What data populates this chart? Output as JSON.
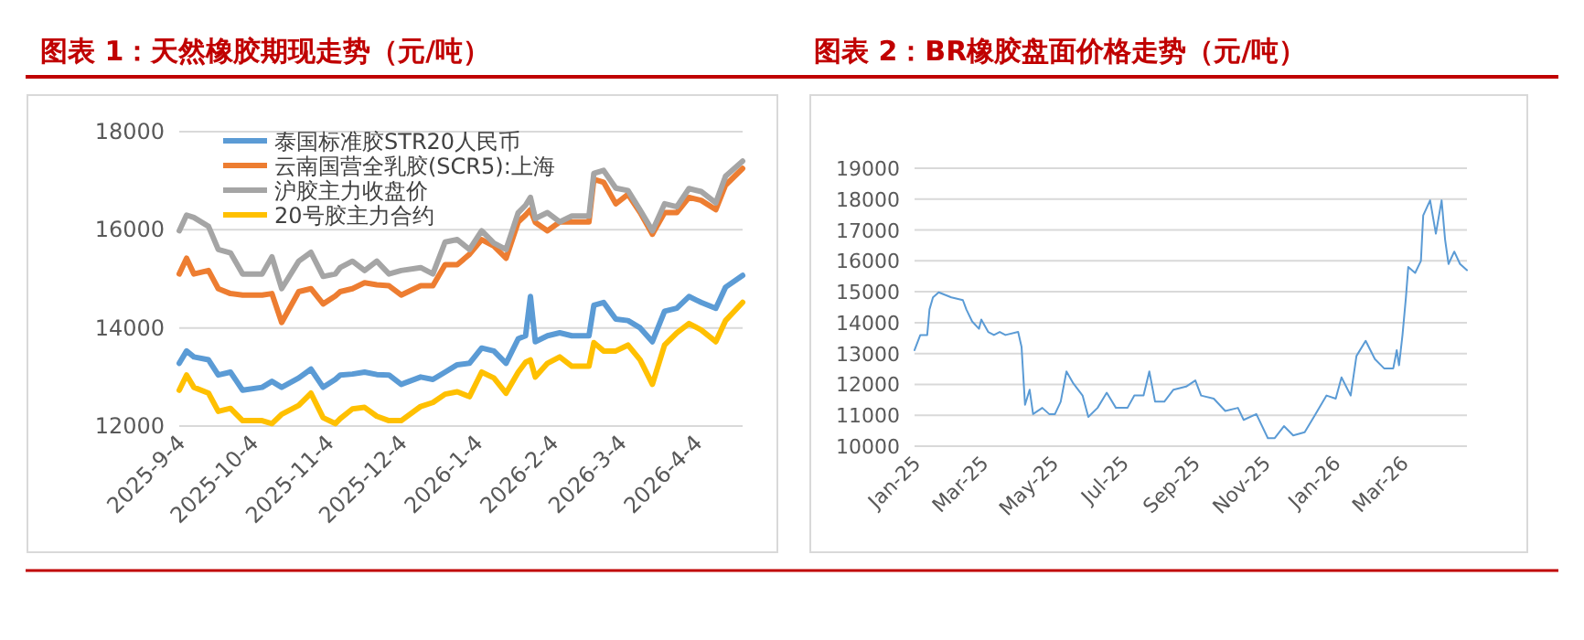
{
  "chart_data": [
    {
      "type": "line",
      "title": "图表 1：天然橡胶期现走势（元/吨）",
      "x": [
        "2025-09-04",
        "2025-09-07",
        "2025-09-10",
        "2025-09-16",
        "2025-09-20",
        "2025-09-25",
        "2025-09-30",
        "2025-10-08",
        "2025-10-12",
        "2025-10-16",
        "2025-10-23",
        "2025-10-28",
        "2025-11-02",
        "2025-11-07",
        "2025-11-09",
        "2025-11-14",
        "2025-11-19",
        "2025-11-24",
        "2025-11-29",
        "2025-12-04",
        "2025-12-12",
        "2025-12-17",
        "2025-12-22",
        "2025-12-27",
        "2026-01-01",
        "2026-01-06",
        "2026-01-11",
        "2026-01-16",
        "2026-01-21",
        "2026-01-24",
        "2026-01-26",
        "2026-01-28",
        "2026-02-02",
        "2026-02-07",
        "2026-02-12",
        "2026-02-19",
        "2026-02-21",
        "2026-02-25",
        "2026-03-02",
        "2026-03-07",
        "2026-03-12",
        "2026-03-17",
        "2026-03-22",
        "2026-03-27",
        "2026-04-01",
        "2026-04-06",
        "2026-04-12",
        "2026-04-16",
        "2026-04-23"
      ],
      "series": [
        {
          "name": "泰国标准胶STR20人民币",
          "color": "#5b9bd5",
          "values": [
            13280,
            13530,
            13410,
            13350,
            13040,
            13100,
            12730,
            12790,
            12910,
            12790,
            12980,
            13160,
            12790,
            12950,
            13040,
            13060,
            13100,
            13050,
            13040,
            12850,
            13000,
            12950,
            13100,
            13250,
            13280,
            13590,
            13530,
            13280,
            13780,
            13840,
            14640,
            13720,
            13840,
            13900,
            13840,
            13840,
            14460,
            14520,
            14180,
            14150,
            14000,
            13720,
            14340,
            14400,
            14640,
            14520,
            14400,
            14830,
            15070
          ]
        },
        {
          "name": "云南国营全乳胶(SCR5):上海",
          "color": "#ed7d31",
          "values": [
            15100,
            15420,
            15100,
            15170,
            14800,
            14700,
            14670,
            14670,
            14700,
            14110,
            14740,
            14800,
            14490,
            14650,
            14740,
            14800,
            14920,
            14880,
            14860,
            14670,
            14860,
            14860,
            15290,
            15290,
            15500,
            15800,
            15670,
            15420,
            16160,
            16300,
            16410,
            16150,
            15980,
            16160,
            16160,
            16160,
            17030,
            16970,
            16530,
            16720,
            16350,
            15910,
            16350,
            16350,
            16660,
            16600,
            16410,
            16910,
            17250
          ]
        },
        {
          "name": "沪胶主力收盘价",
          "color": "#a5a5a5",
          "values": [
            15980,
            16300,
            16250,
            16070,
            15600,
            15530,
            15100,
            15100,
            15450,
            14800,
            15360,
            15540,
            15050,
            15100,
            15230,
            15360,
            15170,
            15360,
            15100,
            15170,
            15230,
            15100,
            15750,
            15800,
            15600,
            15980,
            15730,
            15600,
            16350,
            16500,
            16660,
            16230,
            16350,
            16160,
            16280,
            16280,
            17150,
            17210,
            16850,
            16800,
            16400,
            15980,
            16530,
            16470,
            16840,
            16780,
            16550,
            17090,
            17400
          ]
        },
        {
          "name": "20号胶主力合约",
          "color": "#ffc000",
          "values": [
            12730,
            13040,
            12790,
            12670,
            12300,
            12360,
            12110,
            12110,
            12050,
            12240,
            12420,
            12670,
            12170,
            12050,
            12150,
            12350,
            12380,
            12200,
            12110,
            12110,
            12400,
            12480,
            12650,
            12700,
            12600,
            13100,
            12980,
            12670,
            13100,
            13300,
            13350,
            13000,
            13280,
            13410,
            13220,
            13220,
            13700,
            13530,
            13530,
            13650,
            13350,
            12850,
            13650,
            13900,
            14090,
            13960,
            13720,
            14150,
            14520
          ]
        }
      ],
      "xlim": [
        "2025-09-04",
        "2026-04-23"
      ],
      "xticks": [
        {
          "value": "2025-09-04",
          "label": "2025-9-4"
        },
        {
          "value": "2025-10-04",
          "label": "2025-10-4"
        },
        {
          "value": "2025-11-04",
          "label": "2025-11-4"
        },
        {
          "value": "2025-12-04",
          "label": "2025-12-4"
        },
        {
          "value": "2026-01-04",
          "label": "2026-1-4"
        },
        {
          "value": "2026-02-04",
          "label": "2026-2-4"
        },
        {
          "value": "2026-03-04",
          "label": "2026-3-4"
        },
        {
          "value": "2026-04-04",
          "label": "2026-4-4"
        }
      ],
      "ylim": [
        12000,
        18000
      ],
      "yticks": [
        12000,
        14000,
        16000,
        18000
      ],
      "grid": "y",
      "legend": "top left"
    },
    {
      "type": "line",
      "title": "图表 2：BR橡胶盘面价格走势（元/吨）",
      "x": [
        "2025-01-01",
        "2025-01-06",
        "2025-01-12",
        "2025-01-14",
        "2025-01-17",
        "2025-01-22",
        "2025-02-02",
        "2025-02-12",
        "2025-02-15",
        "2025-02-20",
        "2025-02-26",
        "2025-02-28",
        "2025-03-06",
        "2025-03-11",
        "2025-03-16",
        "2025-03-21",
        "2025-04-01",
        "2025-04-04",
        "2025-04-07",
        "2025-04-11",
        "2025-04-14",
        "2025-04-22",
        "2025-04-28",
        "2025-05-03",
        "2025-05-08",
        "2025-05-13",
        "2025-05-19",
        "2025-05-27",
        "2025-06-01",
        "2025-06-09",
        "2025-06-17",
        "2025-06-25",
        "2025-07-05",
        "2025-07-11",
        "2025-07-19",
        "2025-07-24",
        "2025-07-29",
        "2025-08-06",
        "2025-08-14",
        "2025-08-25",
        "2025-09-02",
        "2025-09-07",
        "2025-09-18",
        "2025-09-28",
        "2025-10-09",
        "2025-10-14",
        "2025-10-25",
        "2025-11-04",
        "2025-11-10",
        "2025-11-18",
        "2025-11-26",
        "2025-12-06",
        "2025-12-14",
        "2025-12-25",
        "2026-01-02",
        "2026-01-07",
        "2026-01-15",
        "2026-01-20",
        "2026-01-28",
        "2026-02-05",
        "2026-02-13",
        "2026-02-21",
        "2026-02-24",
        "2026-02-26",
        "2026-03-01",
        "2026-03-04",
        "2026-03-06",
        "2026-03-12",
        "2026-03-17",
        "2026-03-19",
        "2026-03-25",
        "2026-03-30",
        "2026-04-04",
        "2026-04-07",
        "2026-04-10",
        "2026-04-15",
        "2026-04-20",
        "2026-04-26"
      ],
      "series": [
        {
          "color": "#5b9bd5",
          "values": [
            13110,
            13600,
            13600,
            14430,
            14820,
            14980,
            14820,
            14730,
            14430,
            14040,
            13800,
            14100,
            13700,
            13600,
            13700,
            13600,
            13700,
            13210,
            11340,
            11830,
            11040,
            11240,
            11040,
            11040,
            11440,
            12420,
            12030,
            11640,
            10950,
            11240,
            11730,
            11240,
            11240,
            11640,
            11640,
            12420,
            11440,
            11440,
            11830,
            11930,
            12130,
            11640,
            11540,
            11140,
            11240,
            10850,
            11040,
            10260,
            10260,
            10650,
            10350,
            10450,
            10950,
            11640,
            11540,
            12230,
            11640,
            12920,
            13410,
            12820,
            12520,
            12520,
            13110,
            12620,
            13600,
            14820,
            15800,
            15610,
            16000,
            17470,
            17960,
            16880,
            17960,
            16690,
            15900,
            16300,
            15900,
            15700
          ]
        }
      ],
      "xlim": [
        "2025-01-01",
        "2026-04-26"
      ],
      "xticks": [
        {
          "value": "2025-01-01",
          "label": "Jan-25"
        },
        {
          "value": "2025-03-01",
          "label": "Mar-25"
        },
        {
          "value": "2025-05-01",
          "label": "May-25"
        },
        {
          "value": "2025-07-01",
          "label": "Jul-25"
        },
        {
          "value": "2025-09-01",
          "label": "Sep-25"
        },
        {
          "value": "2025-11-01",
          "label": "Nov-25"
        },
        {
          "value": "2026-01-01",
          "label": "Jan-26"
        },
        {
          "value": "2026-03-01",
          "label": "Mar-26"
        }
      ],
      "ylim": [
        10000,
        19000
      ],
      "yticks": [
        10000,
        11000,
        12000,
        13000,
        14000,
        15000,
        16000,
        17000,
        18000,
        19000
      ],
      "grid": "y"
    }
  ]
}
